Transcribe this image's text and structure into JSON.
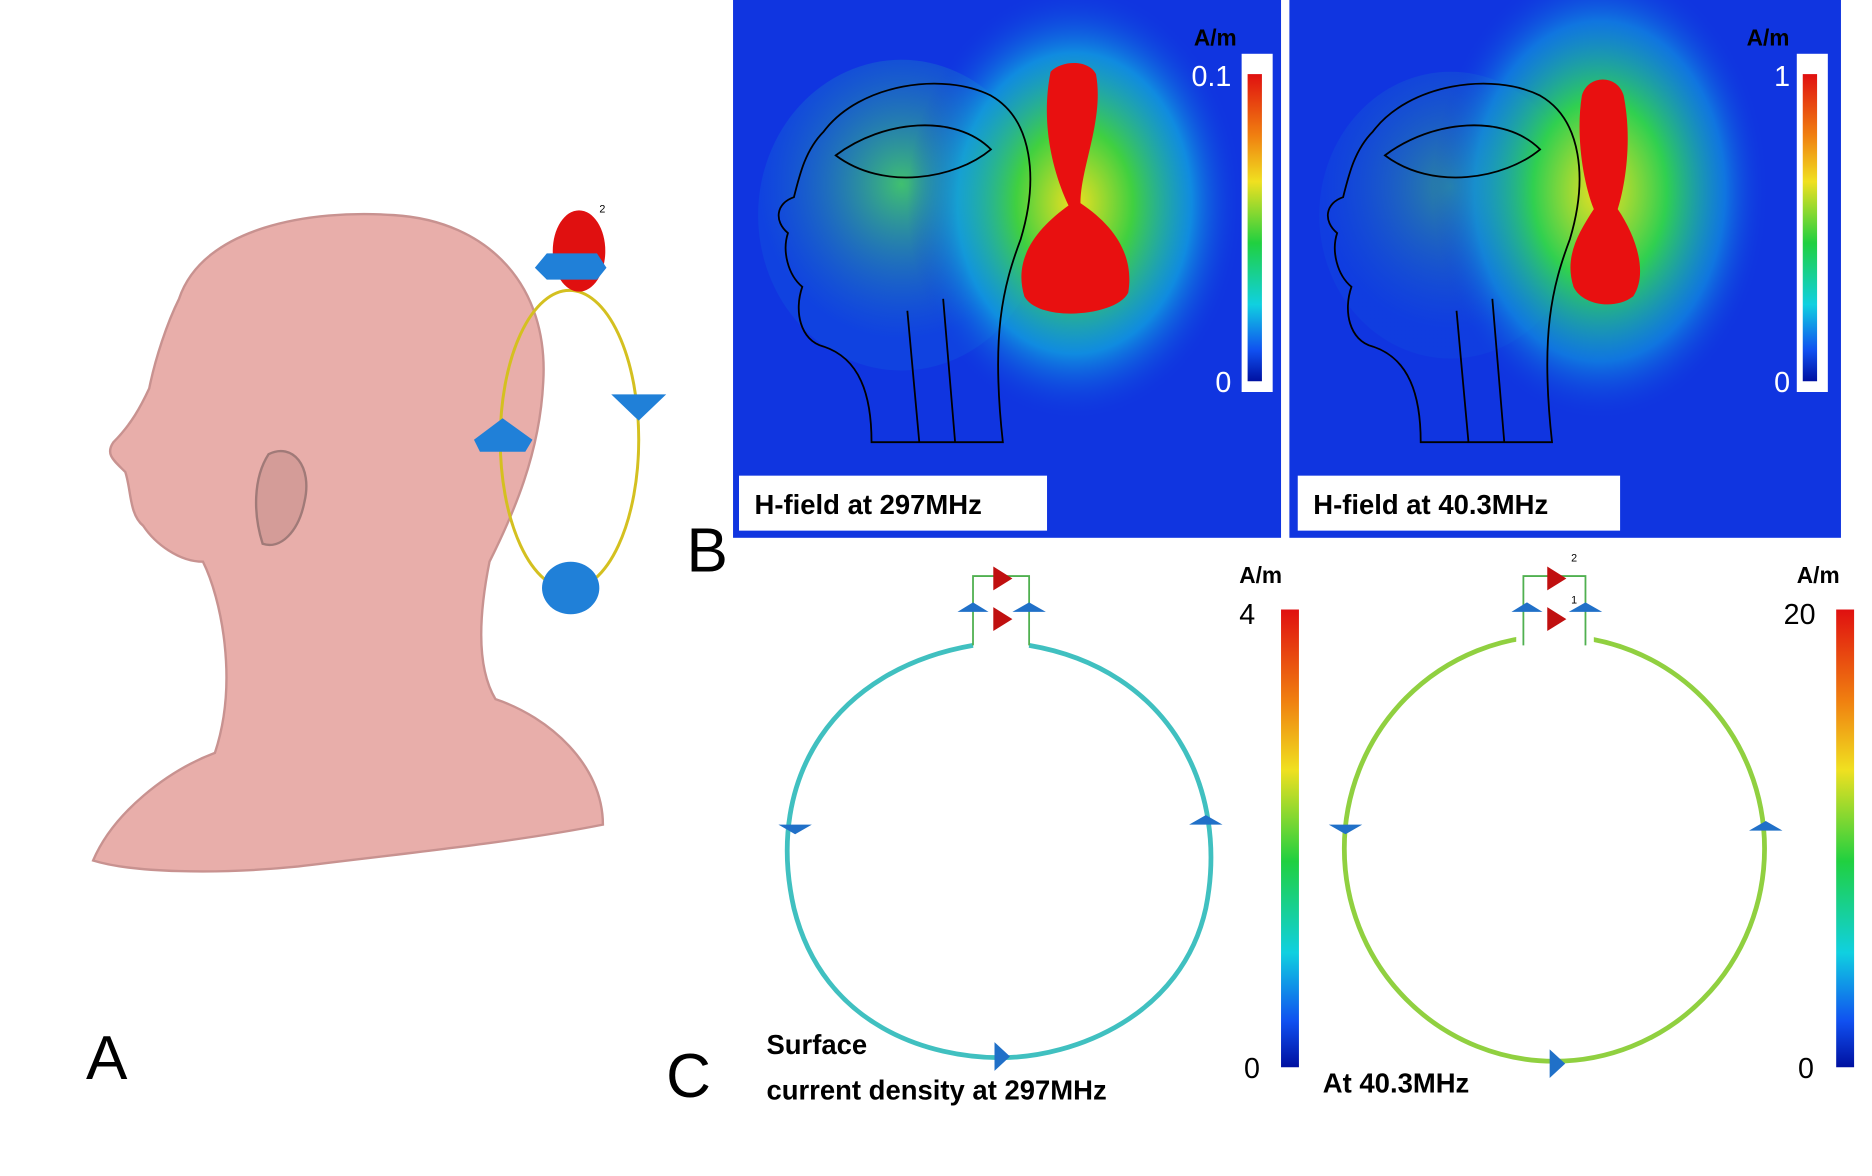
{
  "panel_a": {
    "label": "A",
    "port_label": "2"
  },
  "panel_b": {
    "label": "B",
    "maps": [
      {
        "caption": "H-field at 297MHz",
        "unit": "A/m",
        "max": 0.1,
        "min": 0
      },
      {
        "caption": "H-field at 40.3MHz",
        "unit": "A/m",
        "max": 1,
        "min": 0
      }
    ]
  },
  "panel_c": {
    "label": "C",
    "maps": [
      {
        "caption_lines": [
          "Surface",
          "current density at 297MHz"
        ],
        "unit": "A/m",
        "max": 4,
        "min": 0
      },
      {
        "caption_lines": [
          "At 40.3MHz"
        ],
        "unit": "A/m",
        "max": 20,
        "min": 0,
        "port_labels": [
          "2",
          "1"
        ]
      }
    ]
  }
}
